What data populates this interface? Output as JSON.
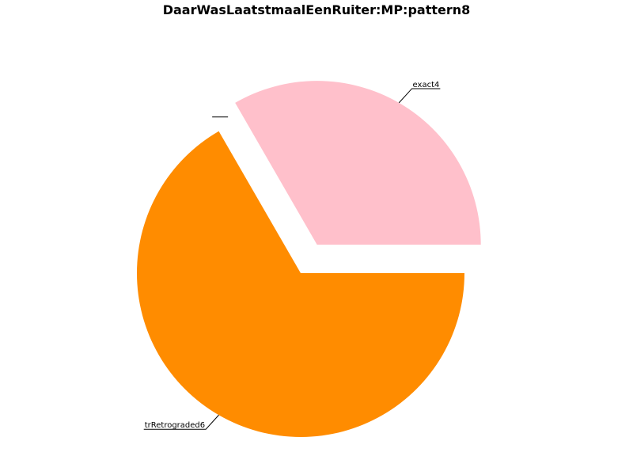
{
  "chart_data": {
    "type": "pie",
    "title": "DaarWasLaatstmaalEenRuiter:MP:pattern8",
    "slices": [
      {
        "label": "exact4",
        "value": 1,
        "color": "#ffc0cb",
        "exploded": true
      },
      {
        "label": "",
        "value": 0,
        "color": "#ffffff",
        "exploded": false
      },
      {
        "label": "trRetrograded6",
        "value": 2,
        "color": "#ff8c00",
        "exploded": false
      }
    ]
  }
}
